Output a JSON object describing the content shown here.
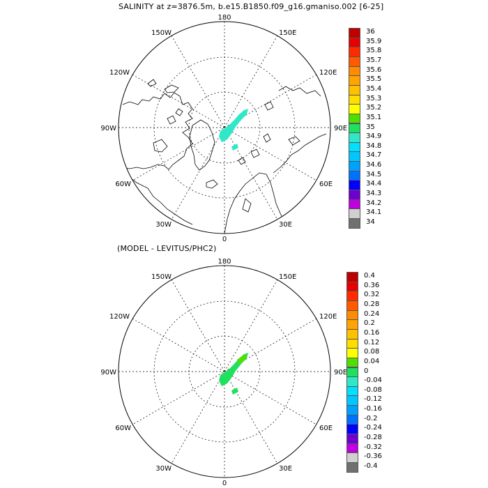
{
  "titles": {
    "top": "SALINITY at z=3876.5m, b.e15.B1850.f09_g16.gmaniso.002 [6-25]",
    "bottom": "(MODEL - LEVITUS/PHC2)"
  },
  "longitude_labels": {
    "top": "180",
    "bottom": "0",
    "left": "90W",
    "right": "90E",
    "w150": "150W",
    "e150": "150E",
    "w120": "120W",
    "e120": "120E",
    "w60": "60W",
    "e60": "60E",
    "w30": "30W",
    "e30": "30E"
  },
  "colorbar_top": {
    "labels": [
      "36",
      "35.9",
      "35.8",
      "35.7",
      "35.6",
      "35.5",
      "35.4",
      "35.3",
      "35.2",
      "35.1",
      "35",
      "34.9",
      "34.8",
      "34.7",
      "34.6",
      "34.5",
      "34.4",
      "34.3",
      "34.2",
      "34.1",
      "34"
    ],
    "colors": [
      "#c00000",
      "#e80000",
      "#ff2a00",
      "#ff5a00",
      "#ff8c00",
      "#ffa400",
      "#ffc000",
      "#ffde00",
      "#ffff00",
      "#50e000",
      "#20e060",
      "#30e8c8",
      "#00e0ff",
      "#00c8ff",
      "#00a0ff",
      "#0070ff",
      "#0000ff",
      "#7000d0",
      "#c000e0",
      "#d0d0d0",
      "#707070"
    ]
  },
  "colorbar_bottom": {
    "labels": [
      "0.4",
      "0.36",
      "0.32",
      "0.28",
      "0.24",
      "0.2",
      "0.16",
      "0.12",
      "0.08",
      "0.04",
      "0",
      "-0.04",
      "-0.08",
      "-0.12",
      "-0.16",
      "-0.2",
      "-0.24",
      "-0.28",
      "-0.32",
      "-0.36",
      "-0.4"
    ],
    "colors": [
      "#c00000",
      "#e80000",
      "#ff2a00",
      "#ff5a00",
      "#ff8c00",
      "#ffa400",
      "#ffc000",
      "#ffde00",
      "#ffff00",
      "#50e000",
      "#20e060",
      "#30e8c8",
      "#00e0ff",
      "#00c8ff",
      "#00a0ff",
      "#0070ff",
      "#0000ff",
      "#7000d0",
      "#c000e0",
      "#d0d0d0",
      "#707070"
    ]
  },
  "field_colors": {
    "top_ridge": "#30e8c8",
    "bottom_ridge_main": "#20e060",
    "bottom_ridge_secondary": "#50e000"
  }
}
